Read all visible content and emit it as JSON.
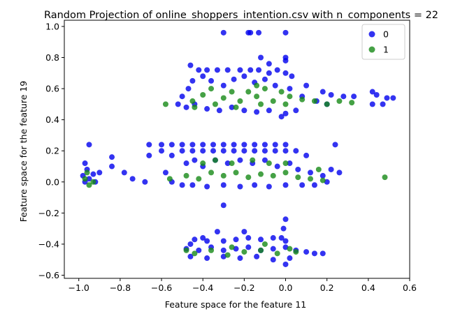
{
  "chart_data": {
    "type": "scatter",
    "title": "Random Projection of online_shoppers_intention.csv with n_components = 22",
    "xlabel": "Feature space for the feature 11",
    "ylabel": "Feature space for the feature 19",
    "xlim": [
      -1.07,
      0.6
    ],
    "ylim": [
      -0.62,
      1.04
    ],
    "xticks": [
      -1.0,
      -0.8,
      -0.6,
      -0.4,
      -0.2,
      0.0,
      0.2,
      0.4,
      0.6
    ],
    "xtick_labels": [
      "−1.0",
      "−0.8",
      "−0.6",
      "−0.4",
      "−0.2",
      "0.0",
      "0.2",
      "0.4",
      "0.6"
    ],
    "yticks": [
      -0.6,
      -0.4,
      -0.2,
      0.0,
      0.2,
      0.4,
      0.6,
      0.8,
      1.0
    ],
    "ytick_labels": [
      "−0.6",
      "−0.4",
      "−0.2",
      "0.0",
      "0.2",
      "0.4",
      "0.6",
      "0.8",
      "1.0"
    ],
    "grid": false,
    "legend": "top-right",
    "series": [
      {
        "name": "0",
        "color": "#0000ee",
        "points": [
          [
            -0.3,
            0.96
          ],
          [
            -0.18,
            0.96
          ],
          [
            -0.17,
            0.96
          ],
          [
            -0.13,
            0.96
          ],
          [
            0.0,
            0.96
          ],
          [
            -0.12,
            0.8
          ],
          [
            0.0,
            0.8
          ],
          [
            0.0,
            0.78
          ],
          [
            -0.08,
            0.76
          ],
          [
            -0.46,
            0.75
          ],
          [
            -0.42,
            0.72
          ],
          [
            -0.38,
            0.72
          ],
          [
            -0.33,
            0.72
          ],
          [
            -0.28,
            0.72
          ],
          [
            -0.22,
            0.72
          ],
          [
            -0.17,
            0.72
          ],
          [
            -0.13,
            0.72
          ],
          [
            -0.08,
            0.7
          ],
          [
            -0.04,
            0.72
          ],
          [
            0.0,
            0.7
          ],
          [
            0.03,
            0.68
          ],
          [
            0.1,
            0.62
          ],
          [
            0.18,
            0.58
          ],
          [
            0.22,
            0.56
          ],
          [
            0.28,
            0.55
          ],
          [
            0.33,
            0.55
          ],
          [
            0.42,
            0.58
          ],
          [
            0.44,
            0.56
          ],
          [
            0.47,
            0.5
          ],
          [
            0.49,
            0.54
          ],
          [
            0.52,
            0.54
          ],
          [
            0.42,
            0.5
          ],
          [
            0.2,
            0.5
          ],
          [
            0.15,
            0.52
          ],
          [
            0.08,
            0.55
          ],
          [
            -0.5,
            0.55
          ],
          [
            -0.47,
            0.6
          ],
          [
            -0.45,
            0.65
          ],
          [
            -0.4,
            0.68
          ],
          [
            -0.36,
            0.65
          ],
          [
            -0.3,
            0.62
          ],
          [
            -0.25,
            0.66
          ],
          [
            -0.2,
            0.68
          ],
          [
            -0.15,
            0.64
          ],
          [
            -0.1,
            0.66
          ],
          [
            -0.05,
            0.62
          ],
          [
            0.02,
            0.6
          ],
          [
            -0.52,
            0.5
          ],
          [
            -0.48,
            0.48
          ],
          [
            -0.44,
            0.5
          ],
          [
            -0.38,
            0.47
          ],
          [
            -0.32,
            0.46
          ],
          [
            -0.26,
            0.48
          ],
          [
            -0.2,
            0.46
          ],
          [
            -0.14,
            0.45
          ],
          [
            -0.08,
            0.46
          ],
          [
            0.0,
            0.44
          ],
          [
            0.05,
            0.46
          ],
          [
            -0.02,
            0.42
          ],
          [
            -0.66,
            0.24
          ],
          [
            -0.6,
            0.24
          ],
          [
            -0.55,
            0.24
          ],
          [
            -0.5,
            0.24
          ],
          [
            -0.45,
            0.24
          ],
          [
            -0.4,
            0.24
          ],
          [
            -0.35,
            0.24
          ],
          [
            -0.3,
            0.24
          ],
          [
            -0.25,
            0.24
          ],
          [
            -0.2,
            0.24
          ],
          [
            -0.15,
            0.24
          ],
          [
            -0.1,
            0.24
          ],
          [
            -0.05,
            0.24
          ],
          [
            0.0,
            0.24
          ],
          [
            -0.95,
            0.24
          ],
          [
            0.24,
            0.24
          ],
          [
            -0.66,
            0.17
          ],
          [
            -0.6,
            0.2
          ],
          [
            -0.55,
            0.17
          ],
          [
            -0.5,
            0.2
          ],
          [
            -0.45,
            0.2
          ],
          [
            -0.4,
            0.2
          ],
          [
            -0.35,
            0.2
          ],
          [
            -0.3,
            0.2
          ],
          [
            -0.25,
            0.2
          ],
          [
            -0.2,
            0.2
          ],
          [
            -0.15,
            0.2
          ],
          [
            -0.1,
            0.2
          ],
          [
            -0.05,
            0.2
          ],
          [
            0.0,
            0.2
          ],
          [
            0.05,
            0.2
          ],
          [
            0.1,
            0.17
          ],
          [
            -0.84,
            0.16
          ],
          [
            -0.84,
            0.1
          ],
          [
            -0.78,
            0.06
          ],
          [
            -0.74,
            0.02
          ],
          [
            -0.68,
            0.0
          ],
          [
            -0.58,
            0.06
          ],
          [
            -0.55,
            0.0
          ],
          [
            -0.48,
            0.12
          ],
          [
            -0.44,
            0.14
          ],
          [
            -0.4,
            0.1
          ],
          [
            -0.34,
            0.14
          ],
          [
            -0.28,
            0.12
          ],
          [
            -0.22,
            0.14
          ],
          [
            -0.16,
            0.12
          ],
          [
            -0.1,
            0.14
          ],
          [
            -0.04,
            0.1
          ],
          [
            0.02,
            0.12
          ],
          [
            0.06,
            0.08
          ],
          [
            0.12,
            0.06
          ],
          [
            0.18,
            0.04
          ],
          [
            0.22,
            0.08
          ],
          [
            0.26,
            0.06
          ],
          [
            0.2,
            0.0
          ],
          [
            -0.98,
            0.04
          ],
          [
            -0.96,
            0.08
          ],
          [
            -0.97,
            0.12
          ],
          [
            -0.95,
            0.02
          ],
          [
            -0.93,
            0.05
          ],
          [
            -0.9,
            0.06
          ],
          [
            -0.92,
            0.0
          ],
          [
            -0.97,
            0.0
          ],
          [
            -0.5,
            -0.02
          ],
          [
            -0.45,
            -0.02
          ],
          [
            -0.38,
            -0.03
          ],
          [
            -0.3,
            -0.02
          ],
          [
            -0.22,
            -0.03
          ],
          [
            -0.15,
            -0.02
          ],
          [
            -0.08,
            -0.03
          ],
          [
            0.0,
            -0.02
          ],
          [
            0.08,
            -0.02
          ],
          [
            0.14,
            -0.02
          ],
          [
            -0.3,
            -0.15
          ],
          [
            0.0,
            -0.24
          ],
          [
            -0.01,
            -0.3
          ],
          [
            -0.02,
            -0.36
          ],
          [
            -0.2,
            -0.32
          ],
          [
            -0.33,
            -0.32
          ],
          [
            -0.4,
            -0.36
          ],
          [
            -0.44,
            -0.37
          ],
          [
            -0.46,
            -0.4
          ],
          [
            -0.38,
            -0.38
          ],
          [
            -0.3,
            -0.38
          ],
          [
            -0.24,
            -0.37
          ],
          [
            -0.18,
            -0.36
          ],
          [
            -0.12,
            -0.37
          ],
          [
            -0.06,
            -0.36
          ],
          [
            0.0,
            -0.38
          ],
          [
            -0.48,
            -0.43
          ],
          [
            -0.42,
            -0.44
          ],
          [
            -0.36,
            -0.42
          ],
          [
            -0.3,
            -0.44
          ],
          [
            -0.24,
            -0.43
          ],
          [
            -0.18,
            -0.42
          ],
          [
            -0.12,
            -0.44
          ],
          [
            -0.06,
            -0.43
          ],
          [
            0.0,
            -0.42
          ],
          [
            0.05,
            -0.44
          ],
          [
            0.1,
            -0.45
          ],
          [
            0.18,
            -0.46
          ],
          [
            0.14,
            -0.46
          ],
          [
            -0.46,
            -0.48
          ],
          [
            -0.38,
            -0.49
          ],
          [
            -0.3,
            -0.48
          ],
          [
            -0.22,
            -0.49
          ],
          [
            -0.14,
            -0.48
          ],
          [
            -0.06,
            -0.5
          ],
          [
            0.0,
            -0.53
          ],
          [
            0.02,
            -0.49
          ]
        ]
      },
      {
        "name": "1",
        "color": "#178a17",
        "points": [
          [
            -0.58,
            0.5
          ],
          [
            -0.45,
            0.52
          ],
          [
            -0.4,
            0.56
          ],
          [
            -0.36,
            0.6
          ],
          [
            -0.3,
            0.54
          ],
          [
            -0.26,
            0.58
          ],
          [
            -0.22,
            0.52
          ],
          [
            -0.18,
            0.58
          ],
          [
            -0.14,
            0.55
          ],
          [
            -0.1,
            0.6
          ],
          [
            -0.06,
            0.52
          ],
          [
            -0.02,
            0.58
          ],
          [
            0.02,
            0.55
          ],
          [
            0.08,
            0.53
          ],
          [
            0.14,
            0.52
          ],
          [
            0.2,
            0.5
          ],
          [
            0.26,
            0.52
          ],
          [
            0.32,
            0.51
          ],
          [
            -0.44,
            0.48
          ],
          [
            -0.34,
            0.5
          ],
          [
            -0.24,
            0.48
          ],
          [
            -0.12,
            0.5
          ],
          [
            0.0,
            0.5
          ],
          [
            -0.14,
            0.62
          ],
          [
            -0.97,
            0.02
          ],
          [
            -0.96,
            0.06
          ],
          [
            -0.95,
            -0.02
          ],
          [
            -0.93,
            0.0
          ],
          [
            -0.56,
            0.02
          ],
          [
            -0.48,
            0.04
          ],
          [
            -0.42,
            0.02
          ],
          [
            -0.36,
            0.06
          ],
          [
            -0.3,
            0.04
          ],
          [
            -0.24,
            0.06
          ],
          [
            -0.18,
            0.03
          ],
          [
            -0.12,
            0.05
          ],
          [
            -0.06,
            0.04
          ],
          [
            0.0,
            0.06
          ],
          [
            0.06,
            0.03
          ],
          [
            0.12,
            0.02
          ],
          [
            0.18,
            0.01
          ],
          [
            -0.4,
            0.12
          ],
          [
            -0.34,
            0.14
          ],
          [
            -0.26,
            0.12
          ],
          [
            -0.16,
            0.14
          ],
          [
            -0.08,
            0.12
          ],
          [
            0.0,
            0.12
          ],
          [
            0.16,
            0.08
          ],
          [
            0.48,
            0.03
          ],
          [
            -0.48,
            -0.44
          ],
          [
            -0.44,
            -0.46
          ],
          [
            -0.36,
            -0.44
          ],
          [
            -0.28,
            -0.47
          ],
          [
            -0.2,
            -0.45
          ],
          [
            -0.12,
            -0.44
          ],
          [
            -0.04,
            -0.46
          ],
          [
            0.02,
            -0.43
          ],
          [
            0.05,
            -0.45
          ],
          [
            -0.26,
            -0.42
          ],
          [
            -0.1,
            -0.4
          ]
        ]
      }
    ]
  }
}
